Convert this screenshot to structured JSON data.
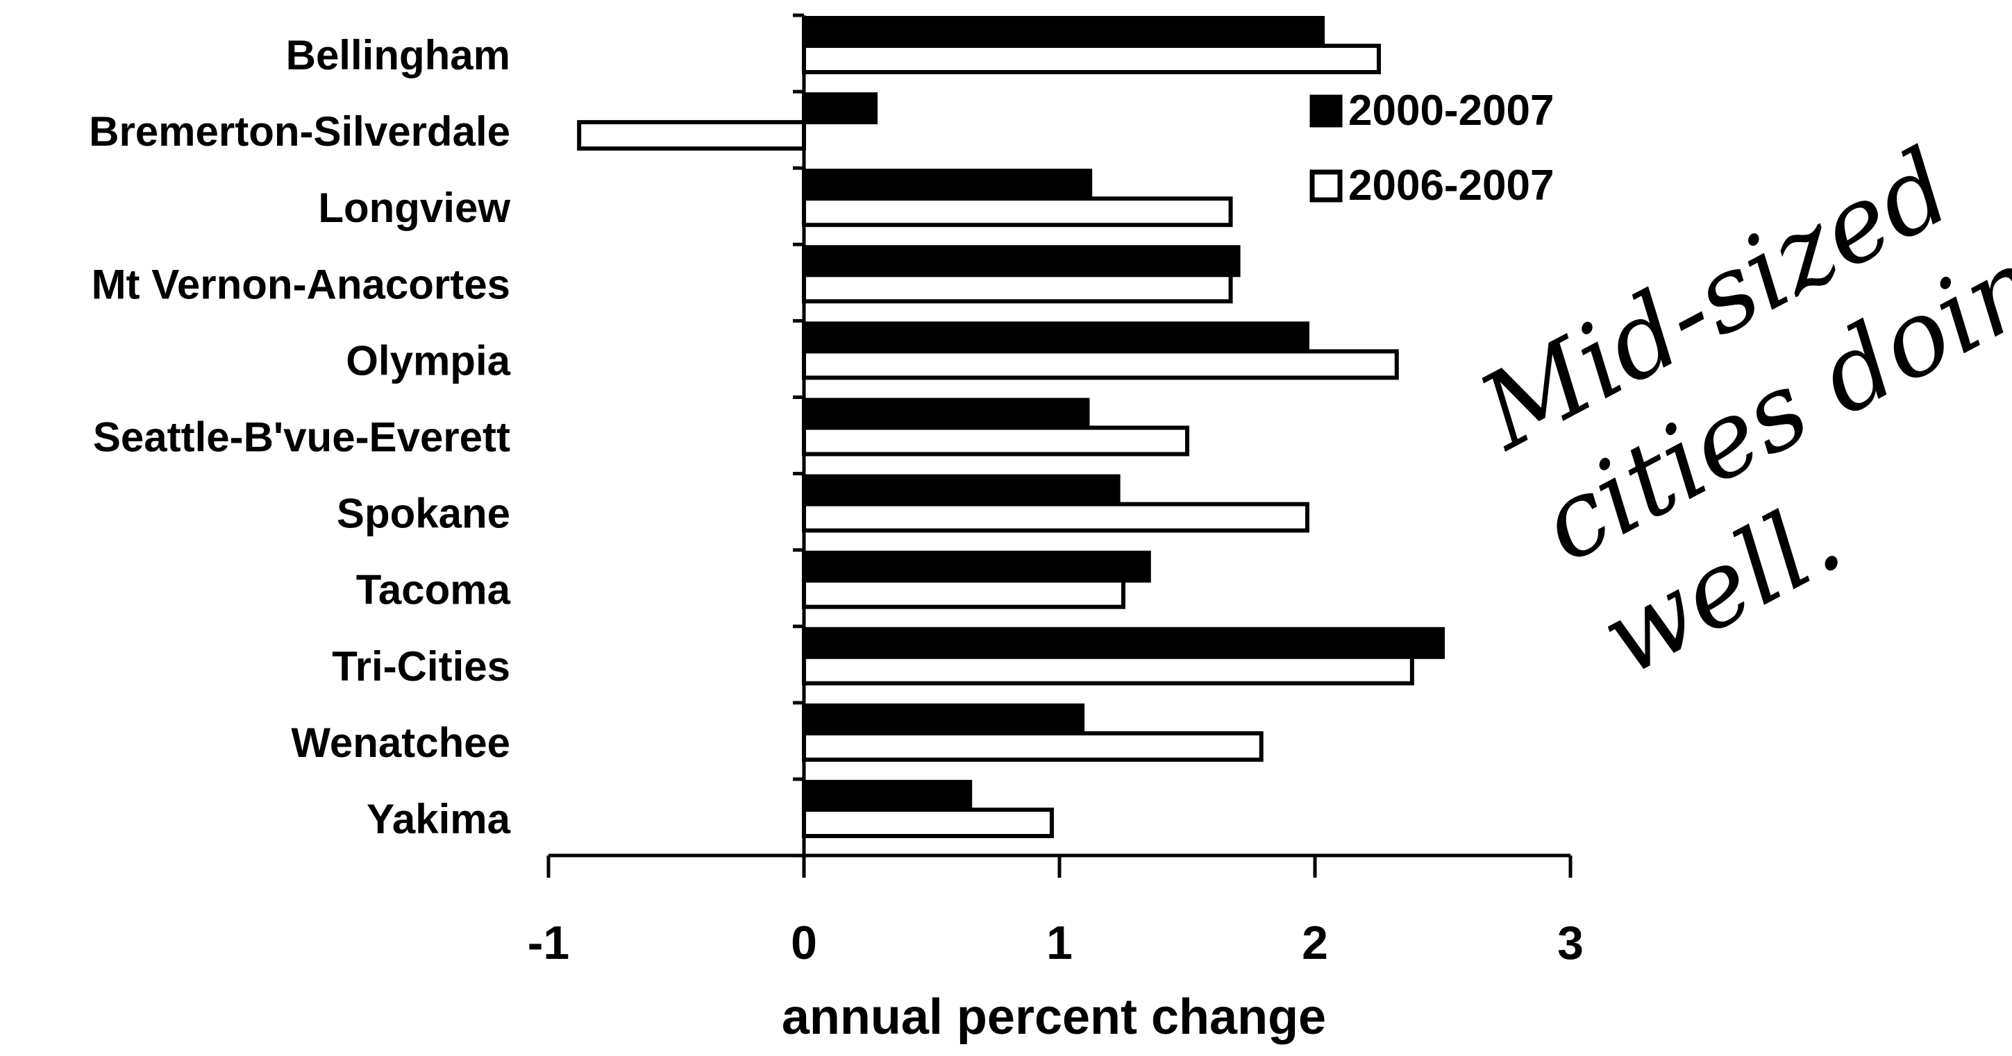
{
  "chart_data": {
    "type": "bar",
    "orientation": "horizontal",
    "categories": [
      "Bellingham",
      "Bremerton-Silverdale",
      "Longview",
      "Mt Vernon-Anacortes",
      "Olympia",
      "Seattle-B'vue-Everett",
      "Spokane",
      "Tacoma",
      "Tri-Cities",
      "Wenatchee",
      "Yakima"
    ],
    "series": [
      {
        "name": "2000-2007",
        "fill": "#000000",
        "values": [
          2.03,
          0.28,
          1.12,
          1.7,
          1.97,
          1.11,
          1.23,
          1.35,
          2.5,
          1.09,
          0.65
        ]
      },
      {
        "name": "2006-2007",
        "fill": "#ffffff",
        "values": [
          2.25,
          -0.88,
          1.67,
          1.67,
          2.32,
          1.5,
          1.97,
          1.25,
          2.38,
          1.79,
          0.97
        ]
      }
    ],
    "xlabel": "annual percent change",
    "ylabel": "",
    "xlim": [
      -1,
      3
    ],
    "xticks": [
      "-1",
      "0",
      "1",
      "2",
      "3"
    ],
    "legend_position": "top-right",
    "grid": false,
    "annotation": {
      "lines": [
        "Mid-sized",
        "cities doing",
        "well."
      ],
      "style": "handwritten"
    }
  }
}
